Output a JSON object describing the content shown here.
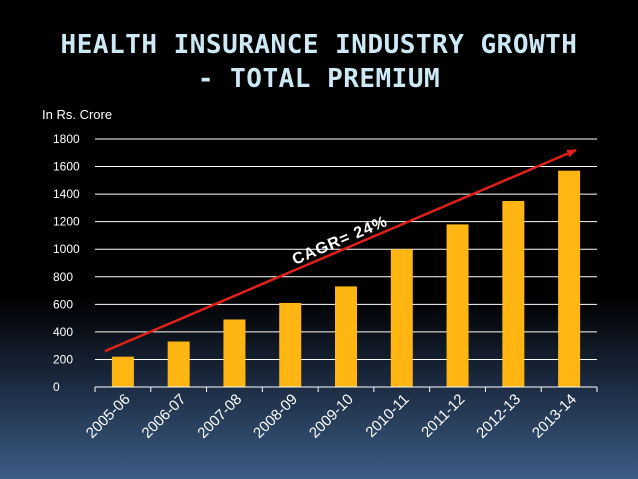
{
  "slide": {
    "title": "HEALTH INSURANCE INDUSTRY GROWTH\n- TOTAL PREMIUM",
    "unit_label": "In  Rs. Crore"
  },
  "colors": {
    "bar": "#ffb612",
    "trend": "#e0201a",
    "title": "#cde9f5",
    "grid": "#ffffff"
  },
  "chart_data": {
    "type": "bar",
    "title": "",
    "xlabel": "",
    "ylabel": "In  Rs. Crore",
    "categories": [
      "2005-06",
      "2006-07",
      "2007-08",
      "2008-09",
      "2009-10",
      "2010-11",
      "2011-12",
      "2012-13",
      "2013-14"
    ],
    "values": [
      220,
      330,
      490,
      610,
      730,
      1000,
      1180,
      1350,
      1570
    ],
    "ylim": [
      0,
      1800
    ],
    "yticks": [
      0,
      200,
      400,
      600,
      800,
      1000,
      1200,
      1400,
      1600,
      1800
    ],
    "grid": true,
    "legend": "none",
    "annotation": {
      "text": "CAGR= 24%",
      "type": "trend-arrow",
      "from": {
        "category": "2005-06",
        "y": 260
      },
      "to": {
        "category": "2013-14",
        "y": 1720
      }
    }
  }
}
